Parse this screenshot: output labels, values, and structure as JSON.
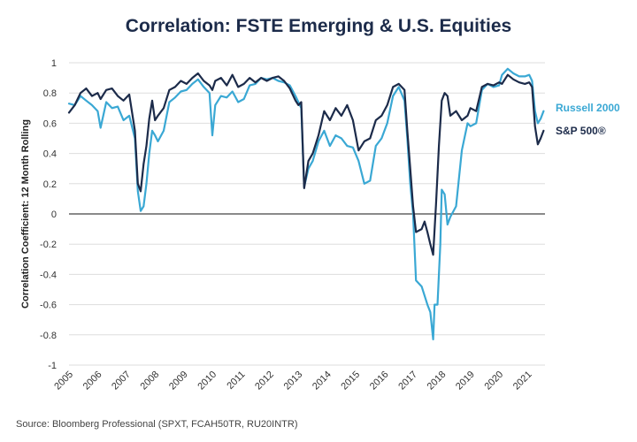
{
  "chart_data": {
    "type": "line",
    "title": "Correlation: FSTE Emerging & U.S. Equities",
    "ylabel": "Correlation Coefficient: 12 Month Rolling",
    "xlabel": "",
    "ylim": [
      -1,
      1
    ],
    "xlim": [
      2005,
      2021.6
    ],
    "yticks": [
      "1",
      "0.8",
      "0.6",
      "0.4",
      "0.2",
      "0",
      "-0.2",
      "-0.4",
      "-0.6",
      "-0.8",
      "-1"
    ],
    "xticks": [
      "2005",
      "2006",
      "2007",
      "2008",
      "2009",
      "2010",
      "2011",
      "2012",
      "2013",
      "2014",
      "2015",
      "2016",
      "2017",
      "2018",
      "2019",
      "2020",
      "2021"
    ],
    "grid": "horizontal",
    "legend": "right",
    "source": "Source: Bloomberg Professional (SPXT, FCAH50TR, RU20INTR)",
    "series": [
      {
        "name": "Russell 2000",
        "color": "#3aa8d4",
        "points": [
          [
            2005.0,
            0.73
          ],
          [
            2005.2,
            0.72
          ],
          [
            2005.4,
            0.78
          ],
          [
            2005.6,
            0.75
          ],
          [
            2005.8,
            0.72
          ],
          [
            2006.0,
            0.68
          ],
          [
            2006.1,
            0.57
          ],
          [
            2006.3,
            0.74
          ],
          [
            2006.5,
            0.7
          ],
          [
            2006.7,
            0.71
          ],
          [
            2006.9,
            0.62
          ],
          [
            2007.1,
            0.65
          ],
          [
            2007.3,
            0.5
          ],
          [
            2007.4,
            0.15
          ],
          [
            2007.5,
            0.02
          ],
          [
            2007.6,
            0.05
          ],
          [
            2007.7,
            0.2
          ],
          [
            2007.8,
            0.4
          ],
          [
            2007.9,
            0.55
          ],
          [
            2008.0,
            0.52
          ],
          [
            2008.1,
            0.48
          ],
          [
            2008.3,
            0.55
          ],
          [
            2008.5,
            0.74
          ],
          [
            2008.7,
            0.77
          ],
          [
            2008.9,
            0.81
          ],
          [
            2009.1,
            0.82
          ],
          [
            2009.3,
            0.86
          ],
          [
            2009.5,
            0.89
          ],
          [
            2009.7,
            0.84
          ],
          [
            2009.9,
            0.8
          ],
          [
            2010.0,
            0.52
          ],
          [
            2010.1,
            0.72
          ],
          [
            2010.3,
            0.78
          ],
          [
            2010.5,
            0.77
          ],
          [
            2010.7,
            0.81
          ],
          [
            2010.9,
            0.74
          ],
          [
            2011.1,
            0.76
          ],
          [
            2011.3,
            0.85
          ],
          [
            2011.5,
            0.86
          ],
          [
            2011.7,
            0.9
          ],
          [
            2011.9,
            0.89
          ],
          [
            2012.1,
            0.9
          ],
          [
            2012.3,
            0.88
          ],
          [
            2012.5,
            0.87
          ],
          [
            2012.7,
            0.85
          ],
          [
            2012.9,
            0.78
          ],
          [
            2013.0,
            0.74
          ],
          [
            2013.1,
            0.7
          ],
          [
            2013.2,
            0.18
          ],
          [
            2013.35,
            0.3
          ],
          [
            2013.5,
            0.35
          ],
          [
            2013.7,
            0.48
          ],
          [
            2013.9,
            0.55
          ],
          [
            2014.1,
            0.45
          ],
          [
            2014.3,
            0.52
          ],
          [
            2014.5,
            0.5
          ],
          [
            2014.7,
            0.45
          ],
          [
            2014.9,
            0.44
          ],
          [
            2015.1,
            0.35
          ],
          [
            2015.3,
            0.2
          ],
          [
            2015.5,
            0.22
          ],
          [
            2015.7,
            0.45
          ],
          [
            2015.9,
            0.5
          ],
          [
            2016.1,
            0.6
          ],
          [
            2016.3,
            0.78
          ],
          [
            2016.5,
            0.84
          ],
          [
            2016.7,
            0.75
          ],
          [
            2016.8,
            0.5
          ],
          [
            2016.9,
            0.2
          ],
          [
            2017.0,
            0.0
          ],
          [
            2017.1,
            -0.44
          ],
          [
            2017.3,
            -0.48
          ],
          [
            2017.5,
            -0.6
          ],
          [
            2017.6,
            -0.65
          ],
          [
            2017.7,
            -0.83
          ],
          [
            2017.75,
            -0.6
          ],
          [
            2017.85,
            -0.6
          ],
          [
            2017.95,
            -0.2
          ],
          [
            2018.0,
            0.16
          ],
          [
            2018.1,
            0.13
          ],
          [
            2018.2,
            -0.07
          ],
          [
            2018.3,
            -0.02
          ],
          [
            2018.5,
            0.05
          ],
          [
            2018.7,
            0.42
          ],
          [
            2018.9,
            0.6
          ],
          [
            2019.0,
            0.58
          ],
          [
            2019.2,
            0.6
          ],
          [
            2019.4,
            0.82
          ],
          [
            2019.6,
            0.86
          ],
          [
            2019.8,
            0.84
          ],
          [
            2020.0,
            0.85
          ],
          [
            2020.1,
            0.92
          ],
          [
            2020.3,
            0.96
          ],
          [
            2020.5,
            0.93
          ],
          [
            2020.7,
            0.91
          ],
          [
            2020.9,
            0.91
          ],
          [
            2021.05,
            0.92
          ],
          [
            2021.15,
            0.88
          ],
          [
            2021.25,
            0.68
          ],
          [
            2021.35,
            0.6
          ],
          [
            2021.45,
            0.63
          ],
          [
            2021.55,
            0.68
          ]
        ]
      },
      {
        "name": "S&P 500®",
        "color": "#1c2b4a",
        "points": [
          [
            2005.0,
            0.67
          ],
          [
            2005.2,
            0.72
          ],
          [
            2005.4,
            0.8
          ],
          [
            2005.6,
            0.83
          ],
          [
            2005.8,
            0.78
          ],
          [
            2006.0,
            0.8
          ],
          [
            2006.1,
            0.76
          ],
          [
            2006.3,
            0.82
          ],
          [
            2006.5,
            0.83
          ],
          [
            2006.7,
            0.78
          ],
          [
            2006.9,
            0.75
          ],
          [
            2007.1,
            0.79
          ],
          [
            2007.3,
            0.55
          ],
          [
            2007.4,
            0.2
          ],
          [
            2007.5,
            0.15
          ],
          [
            2007.6,
            0.33
          ],
          [
            2007.7,
            0.45
          ],
          [
            2007.8,
            0.63
          ],
          [
            2007.9,
            0.75
          ],
          [
            2008.0,
            0.62
          ],
          [
            2008.1,
            0.65
          ],
          [
            2008.3,
            0.7
          ],
          [
            2008.5,
            0.82
          ],
          [
            2008.7,
            0.84
          ],
          [
            2008.9,
            0.88
          ],
          [
            2009.1,
            0.86
          ],
          [
            2009.3,
            0.9
          ],
          [
            2009.5,
            0.93
          ],
          [
            2009.7,
            0.88
          ],
          [
            2009.9,
            0.85
          ],
          [
            2010.0,
            0.82
          ],
          [
            2010.1,
            0.88
          ],
          [
            2010.3,
            0.9
          ],
          [
            2010.5,
            0.85
          ],
          [
            2010.7,
            0.92
          ],
          [
            2010.9,
            0.84
          ],
          [
            2011.1,
            0.86
          ],
          [
            2011.3,
            0.9
          ],
          [
            2011.5,
            0.87
          ],
          [
            2011.7,
            0.9
          ],
          [
            2011.9,
            0.88
          ],
          [
            2012.1,
            0.9
          ],
          [
            2012.3,
            0.91
          ],
          [
            2012.5,
            0.88
          ],
          [
            2012.7,
            0.83
          ],
          [
            2012.9,
            0.75
          ],
          [
            2013.0,
            0.72
          ],
          [
            2013.1,
            0.74
          ],
          [
            2013.2,
            0.17
          ],
          [
            2013.35,
            0.35
          ],
          [
            2013.5,
            0.4
          ],
          [
            2013.7,
            0.52
          ],
          [
            2013.9,
            0.68
          ],
          [
            2014.1,
            0.62
          ],
          [
            2014.3,
            0.7
          ],
          [
            2014.5,
            0.65
          ],
          [
            2014.7,
            0.72
          ],
          [
            2014.9,
            0.62
          ],
          [
            2015.1,
            0.42
          ],
          [
            2015.3,
            0.48
          ],
          [
            2015.5,
            0.5
          ],
          [
            2015.7,
            0.62
          ],
          [
            2015.9,
            0.65
          ],
          [
            2016.1,
            0.72
          ],
          [
            2016.3,
            0.84
          ],
          [
            2016.5,
            0.86
          ],
          [
            2016.7,
            0.82
          ],
          [
            2016.8,
            0.55
          ],
          [
            2016.9,
            0.3
          ],
          [
            2017.0,
            0.05
          ],
          [
            2017.1,
            -0.12
          ],
          [
            2017.3,
            -0.1
          ],
          [
            2017.4,
            -0.05
          ],
          [
            2017.5,
            -0.12
          ],
          [
            2017.6,
            -0.2
          ],
          [
            2017.7,
            -0.27
          ],
          [
            2017.8,
            0.06
          ],
          [
            2017.9,
            0.45
          ],
          [
            2018.0,
            0.75
          ],
          [
            2018.1,
            0.8
          ],
          [
            2018.2,
            0.78
          ],
          [
            2018.3,
            0.65
          ],
          [
            2018.5,
            0.68
          ],
          [
            2018.7,
            0.62
          ],
          [
            2018.9,
            0.65
          ],
          [
            2019.0,
            0.7
          ],
          [
            2019.2,
            0.68
          ],
          [
            2019.4,
            0.84
          ],
          [
            2019.6,
            0.86
          ],
          [
            2019.8,
            0.85
          ],
          [
            2020.0,
            0.87
          ],
          [
            2020.1,
            0.86
          ],
          [
            2020.3,
            0.92
          ],
          [
            2020.5,
            0.89
          ],
          [
            2020.7,
            0.87
          ],
          [
            2020.9,
            0.86
          ],
          [
            2021.05,
            0.87
          ],
          [
            2021.15,
            0.84
          ],
          [
            2021.25,
            0.58
          ],
          [
            2021.35,
            0.46
          ],
          [
            2021.45,
            0.5
          ],
          [
            2021.55,
            0.55
          ]
        ]
      }
    ]
  }
}
